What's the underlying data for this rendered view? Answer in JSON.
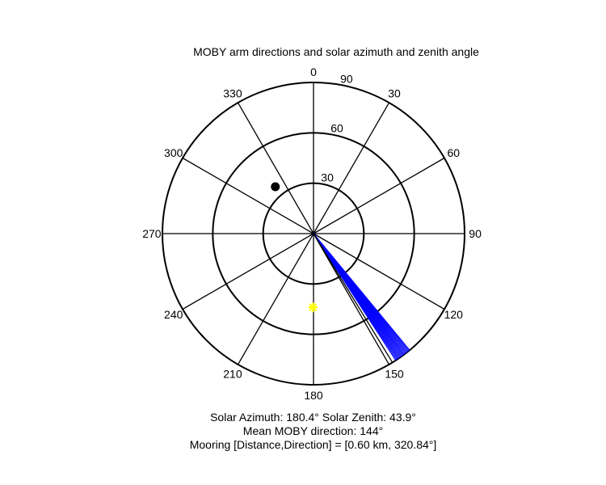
{
  "chart_data": {
    "type": "polar",
    "title": "MOBY arm directions and solar azimuth and zenith angle",
    "angular_axis": {
      "direction": "clockwise",
      "zero_at": "top",
      "tick_labels": [
        "0",
        "30",
        "60",
        "90",
        "120",
        "150",
        "180",
        "210",
        "240",
        "270",
        "300",
        "330"
      ],
      "tick_values": [
        0,
        30,
        60,
        90,
        120,
        150,
        180,
        210,
        240,
        270,
        300,
        330
      ]
    },
    "radial_axis": {
      "range": [
        0,
        90
      ],
      "tick_values": [
        30,
        60,
        90
      ],
      "tick_labels": [
        "30",
        "60",
        "90"
      ]
    },
    "series": [
      {
        "kind": "lines",
        "color": "#0000ff",
        "length": 90,
        "directions": [
          140.5,
          141.0,
          141.5,
          142.0,
          142.5,
          143.0,
          143.5,
          144.0,
          144.5,
          145.0,
          145.5,
          146.0,
          146.5,
          147.0
        ]
      },
      {
        "kind": "line",
        "color": "#000000",
        "length": 90,
        "direction": 148.5
      },
      {
        "kind": "point",
        "color": "#000000",
        "azimuth": 320.84,
        "radius": 36,
        "marker": "dot"
      },
      {
        "kind": "point",
        "color": "#ffff00",
        "azimuth": 180.4,
        "radius": 43.9,
        "marker": "star"
      }
    ]
  },
  "annotations": {
    "line1": "Solar Azimuth: 180.4°   Solar Zenith: 43.9°",
    "line2": "Mean MOBY direction: 144°",
    "line3": "Mooring [Distance,Direction] = [0.60 km, 320.84°]"
  }
}
